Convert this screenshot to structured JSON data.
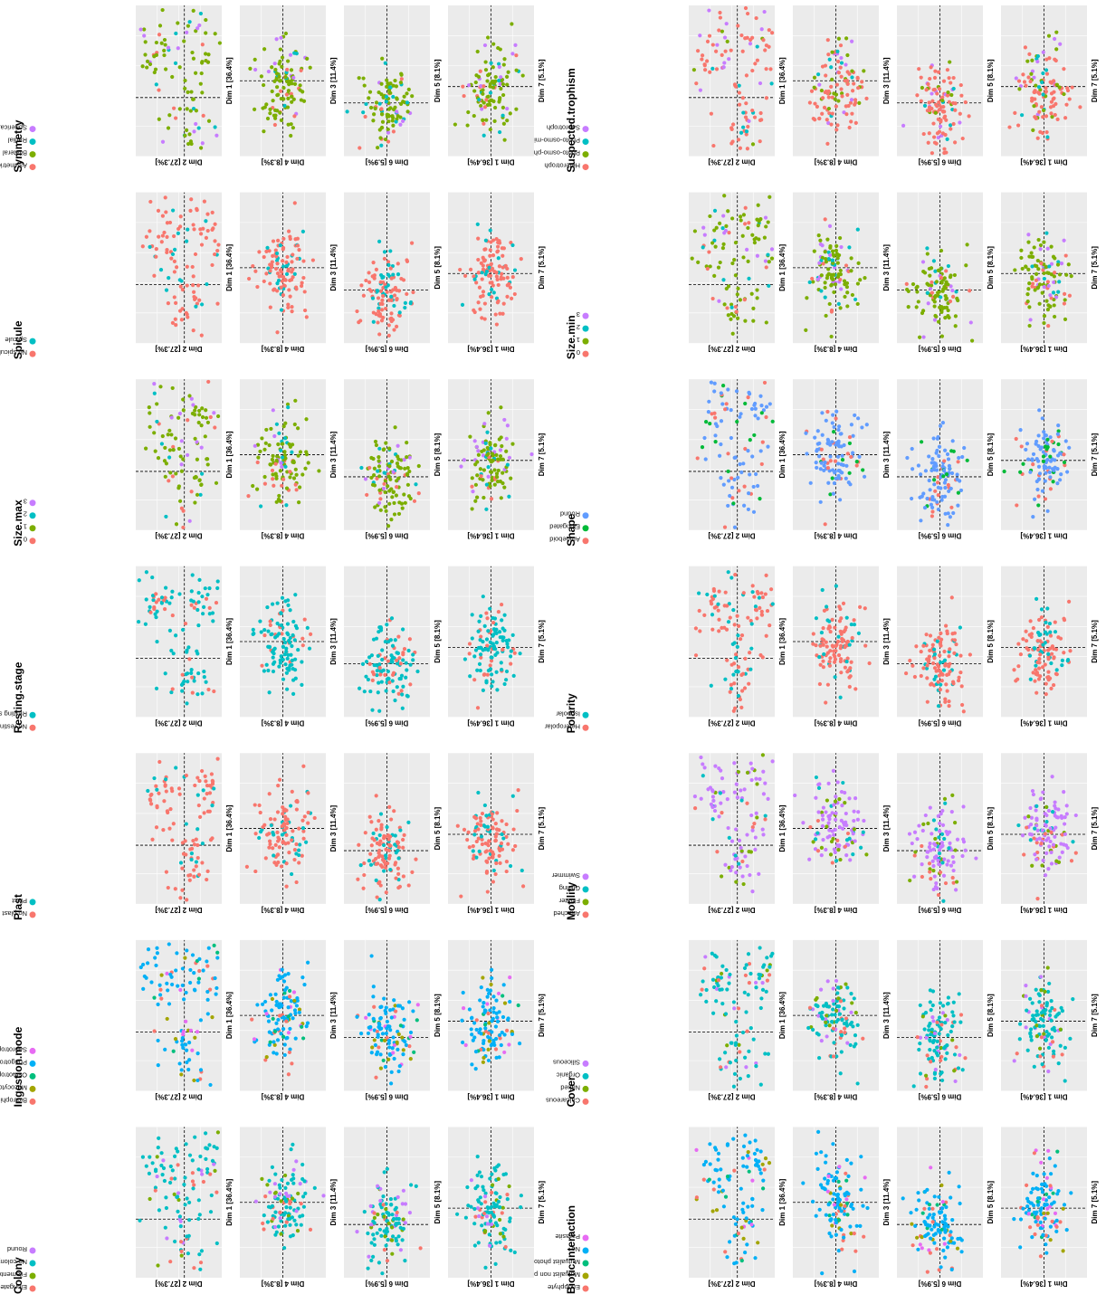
{
  "figure": {
    "orientation": "rotated-90-counterclockwise",
    "dims": {
      "dim1": "Dim 1 [36.4%]",
      "dim2": "Dim 2 [27.3%]",
      "dim3": "Dim 3 [11.4%]",
      "dim4": "Dim 4 [8.3%]",
      "dim5": "Dim 5 [8.1%]",
      "dim6": "Dim 6 [5.9%]",
      "dim7": "Dim 7 [5.1%]"
    },
    "panel_types": [
      {
        "x": "dim1",
        "y": "dim2",
        "xticks": [
          -0.25,
          0.0,
          0.25,
          0.5
        ],
        "yticks": [
          -0.3,
          0.0,
          0.3,
          0.6
        ]
      },
      {
        "x": "dim3",
        "y": "dim4",
        "xticks": [
          -0.2,
          0.0,
          0.2
        ],
        "yticks": [
          -0.4,
          -0.2,
          0.0,
          0.2,
          0.4
        ]
      },
      {
        "x": "dim5",
        "y": "dim6",
        "xticks": [
          -0.25,
          0.0,
          0.25,
          0.5
        ],
        "yticks": [
          -0.2,
          -0.1,
          0.0,
          0.1,
          0.2
        ]
      },
      {
        "x": "dim7",
        "y": "dim1",
        "xticks": [
          -0.2,
          0.0,
          0.2
        ],
        "yticks": [
          -0.5,
          -0.25,
          0.0,
          0.25,
          0.5
        ]
      }
    ],
    "colors": {
      "red": "#f8766d",
      "olive": "#7cae00",
      "teal": "#00bfc4",
      "purple": "#c77cff",
      "green": "#00ba38",
      "blue": "#619cff",
      "yellowgreen": "#a3a500",
      "cyan": "#00b0f6",
      "magenta": "#e76bf3",
      "panel_bg": "#ebebeb",
      "grid": "#ffffff"
    }
  },
  "chart_data": [
    {
      "type": "scatter",
      "variable": "Biotic.interaction",
      "legend_title": "Biotic.interaction",
      "levels": [
        {
          "name": "Endophyte",
          "color": "#f8766d"
        },
        {
          "name": "Mutualist non photosynthetic",
          "color": "#a3a500"
        },
        {
          "name": "Mutualist photosynthetic",
          "color": "#00bf7d"
        },
        {
          "name": "No",
          "color": "#00b0f6"
        },
        {
          "name": "Parasite",
          "color": "#e76bf3"
        }
      ],
      "dominant": "No"
    },
    {
      "type": "scatter",
      "variable": "Cover",
      "legend_title": "Cover",
      "levels": [
        {
          "name": "Calcareous",
          "color": "#f8766d"
        },
        {
          "name": "Naked",
          "color": "#7cae00"
        },
        {
          "name": "Organic",
          "color": "#00bfc4"
        },
        {
          "name": "Siliceous",
          "color": "#c77cff"
        }
      ],
      "dominant": "Organic"
    },
    {
      "type": "scatter",
      "variable": "Motility",
      "legend_title": "Motility",
      "levels": [
        {
          "name": "Attached",
          "color": "#f8766d"
        },
        {
          "name": "Floater",
          "color": "#7cae00"
        },
        {
          "name": "Gliding",
          "color": "#00bfc4"
        },
        {
          "name": "Swimmer",
          "color": "#c77cff"
        }
      ],
      "dominant": "Swimmer"
    },
    {
      "type": "scatter",
      "variable": "Polarity",
      "legend_title": "Polarity",
      "levels": [
        {
          "name": "Heteropolar",
          "color": "#f8766d"
        },
        {
          "name": "Isopolar",
          "color": "#00bfc4"
        }
      ],
      "dominant": "Heteropolar"
    },
    {
      "type": "scatter",
      "variable": "Shape",
      "legend_title": "Shape",
      "levels": [
        {
          "name": "Amoeboid",
          "color": "#f8766d"
        },
        {
          "name": "Elongated",
          "color": "#00ba38"
        },
        {
          "name": "Round",
          "color": "#619cff"
        }
      ],
      "dominant": "Round"
    },
    {
      "type": "scatter",
      "variable": "Size.min",
      "legend_title": "Size.min",
      "levels": [
        {
          "name": "0",
          "color": "#f8766d"
        },
        {
          "name": "1",
          "color": "#7cae00"
        },
        {
          "name": "2",
          "color": "#00bfc4"
        },
        {
          "name": "3",
          "color": "#c77cff"
        }
      ],
      "dominant": "1"
    },
    {
      "type": "scatter",
      "variable": "Suspected.trophism",
      "legend_title": "Suspected.trophism",
      "levels": [
        {
          "name": "Heterotroph",
          "color": "#f8766d"
        },
        {
          "name": "Photo-osmo-phago-mixotroph",
          "color": "#7cae00"
        },
        {
          "name": "Photo-osmo-mixotroph",
          "color": "#00bfc4"
        },
        {
          "name": "Saprotroph",
          "color": "#c77cff"
        }
      ],
      "dominant": "Heterotroph"
    },
    {
      "type": "scatter",
      "variable": "Colony",
      "legend_title": "Colony",
      "levels": [
        {
          "name": "Elongated",
          "color": "#f8766d"
        },
        {
          "name": "Filamentous",
          "color": "#7cae00"
        },
        {
          "name": "No colony",
          "color": "#00bfc4"
        },
        {
          "name": "Round",
          "color": "#c77cff"
        }
      ],
      "dominant": "No colony"
    },
    {
      "type": "scatter",
      "variable": "Ingestion.mode",
      "legend_title": "Ingestion.mode",
      "levels": [
        {
          "name": "Biotrophic",
          "color": "#f8766d"
        },
        {
          "name": "Myzocytotic",
          "color": "#a3a500"
        },
        {
          "name": "Osmotrophic or no ingestion",
          "color": "#00bf7d"
        },
        {
          "name": "Phagotrophic",
          "color": "#00b0f6"
        },
        {
          "name": "Saprotrophic",
          "color": "#e76bf3"
        }
      ],
      "dominant": "Phagotrophic"
    },
    {
      "type": "scatter",
      "variable": "Plast",
      "legend_title": "Plast",
      "levels": [
        {
          "name": "No plast",
          "color": "#f8766d"
        },
        {
          "name": "Plast",
          "color": "#00bfc4"
        }
      ],
      "dominant": "No plast"
    },
    {
      "type": "scatter",
      "variable": "Resting.stage",
      "legend_title": "Resting.stage",
      "levels": [
        {
          "name": "No resting stage",
          "color": "#f8766d"
        },
        {
          "name": "Resting stage",
          "color": "#00bfc4"
        }
      ],
      "dominant": "Resting stage"
    },
    {
      "type": "scatter",
      "variable": "Size.max",
      "legend_title": "Size.max",
      "levels": [
        {
          "name": "0",
          "color": "#f8766d"
        },
        {
          "name": "1",
          "color": "#7cae00"
        },
        {
          "name": "2",
          "color": "#00bfc4"
        },
        {
          "name": "3",
          "color": "#c77cff"
        }
      ],
      "dominant": "1"
    },
    {
      "type": "scatter",
      "variable": "Spicule",
      "legend_title": "Spicule",
      "levels": [
        {
          "name": "No spicule",
          "color": "#f8766d"
        },
        {
          "name": "Spicule",
          "color": "#00bfc4"
        }
      ],
      "dominant": "No spicule"
    },
    {
      "type": "scatter",
      "variable": "Symmetry",
      "legend_title": "Symmetry",
      "levels": [
        {
          "name": "Asymetrical",
          "color": "#f8766d"
        },
        {
          "name": "Bilateral",
          "color": "#7cae00"
        },
        {
          "name": "Radial",
          "color": "#00bfc4"
        },
        {
          "name": "Spherical",
          "color": "#c77cff"
        }
      ],
      "dominant": "Bilateral"
    }
  ]
}
